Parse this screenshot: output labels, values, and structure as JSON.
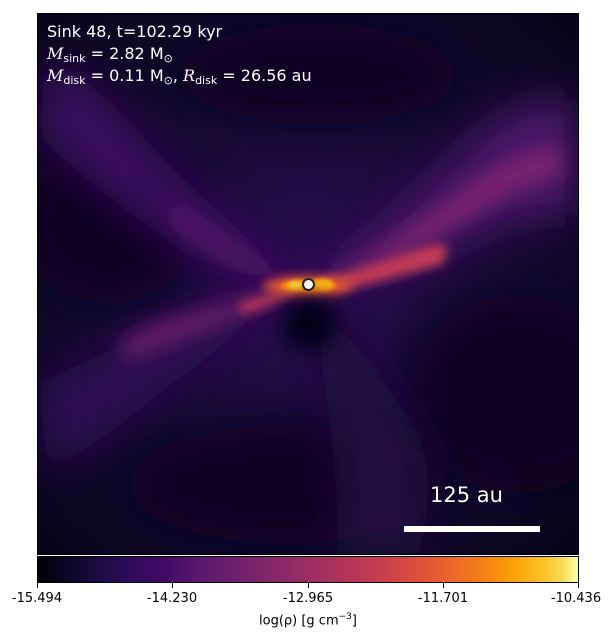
{
  "title": {
    "sink_line": "Sink 48, t=102.29 kyr",
    "msink_sym": "M",
    "msink_sub": "sink",
    "msink_val": " = 2.82 M",
    "msink_unit_sub": "⊙",
    "mdisk_sym": "M",
    "mdisk_sub": "disk",
    "mdisk_val": " = 0.11 M",
    "mdisk_unit_sub": "⊙",
    "rdisk_sep": ", ",
    "rdisk_sym": "R",
    "rdisk_sub": "disk",
    "rdisk_val": " = 26.56 au"
  },
  "scalebar": {
    "label": "125 au"
  },
  "colorbar": {
    "ticks": [
      "-15.494",
      "-14.230",
      "-12.965",
      "-11.701",
      "-10.436"
    ],
    "label_main": "log(ρ) [g cm",
    "label_exp": "−3",
    "label_end": "]",
    "colormap": "inferno",
    "min": -15.494,
    "max": -10.436
  }
}
